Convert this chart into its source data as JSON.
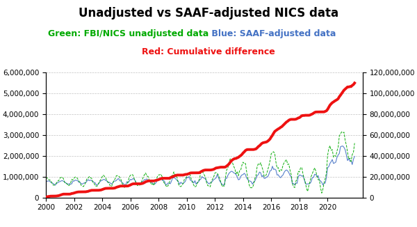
{
  "title": "Unadjusted vs SAAF-adjusted NICS data",
  "sub1_part1": "Green: FBI/NICS unadjusted data",
  "sub1_part2": " Blue: SAAF-adjusted data",
  "sub2": "Red: Cumulative difference",
  "start_year": 2000,
  "end_year": 2021,
  "months": 264,
  "left_ylim": [
    0,
    6000000
  ],
  "right_ylim": [
    0,
    120000000
  ],
  "left_yticks": [
    0,
    1000000,
    2000000,
    3000000,
    4000000,
    5000000,
    6000000
  ],
  "right_yticks": [
    0,
    20000000,
    40000000,
    60000000,
    80000000,
    100000000,
    120000000
  ],
  "xticks": [
    2000,
    2002,
    2004,
    2006,
    2008,
    2010,
    2012,
    2014,
    2016,
    2018,
    2020
  ],
  "green_color": "#00AA00",
  "blue_color": "#4472C4",
  "red_color": "#EE1111",
  "background_color": "#FFFFFF",
  "title_fontsize": 12,
  "subtitle_fontsize": 9,
  "tick_fontsize": 7.5,
  "grid_color": "#999999",
  "grid_style": "--",
  "grid_alpha": 0.6
}
